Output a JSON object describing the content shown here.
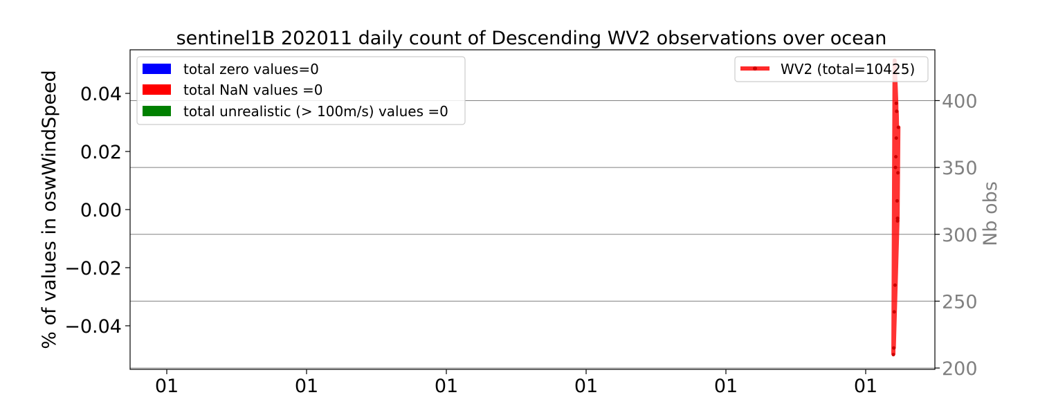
{
  "chart_data": {
    "type": "line",
    "title": "sentinel1B 202011 daily count of Descending WV2 observations over ocean",
    "left_axis": {
      "ylabel": "% of values in oswWindSpeed",
      "ylim": [
        -0.055,
        0.055
      ],
      "ticks": [
        -0.04,
        -0.02,
        0.0,
        0.02,
        0.04
      ],
      "tick_labels": [
        "−0.04",
        "−0.02",
        "0.00",
        "0.02",
        "0.04"
      ]
    },
    "right_axis": {
      "ylabel": "Nb obs",
      "ylim": [
        199,
        438
      ],
      "ticks": [
        200,
        250,
        300,
        350,
        400
      ],
      "tick_labels": [
        "200",
        "250",
        "300",
        "350",
        "400"
      ],
      "color": "#808080",
      "grid": true
    },
    "x_axis": {
      "tick_labels": [
        "01",
        "01",
        "01",
        "01",
        "01",
        "01"
      ]
    },
    "legend_left": [
      {
        "label": "total zero values=0",
        "color": "#0000ff"
      },
      {
        "label": "total NaN values =0",
        "color": "#ff0000"
      },
      {
        "label": "total unrealistic (> 100m/s) values =0",
        "color": "#008000"
      }
    ],
    "series": [
      {
        "name": "WV2 (total=10425)",
        "color": "#ff0000",
        "points": [
          [
            0,
            210
          ],
          [
            0.03,
            430
          ],
          [
            0.07,
            398
          ],
          [
            0.1,
            310
          ],
          [
            0.12,
            380
          ],
          [
            0.05,
            350
          ],
          [
            0.09,
            325
          ],
          [
            0.02,
            242
          ],
          [
            0.08,
            392
          ],
          [
            0.11,
            346
          ],
          [
            0.04,
            262
          ],
          [
            0.06,
            358
          ],
          [
            0.1,
            312
          ],
          [
            0.01,
            215
          ],
          [
            0.07,
            372
          ]
        ]
      }
    ],
    "legend_right_placement": "upper-right"
  }
}
